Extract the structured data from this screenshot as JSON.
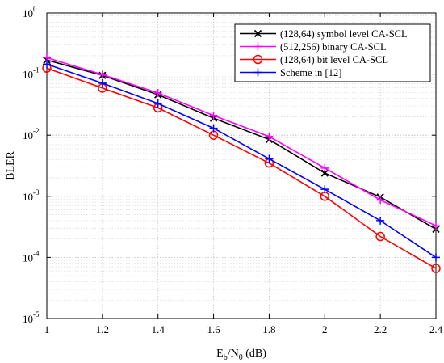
{
  "chart_data": {
    "type": "line",
    "x_scale": "linear",
    "y_scale": "log",
    "xlim": [
      1,
      2.4
    ],
    "ylim": [
      1e-05,
      1
    ],
    "x_ticks": [
      1,
      1.2,
      1.4,
      1.6,
      1.8,
      2,
      2.2,
      2.4
    ],
    "x_tick_labels": [
      "1",
      "1.2",
      "1.4",
      "1.6",
      "1.8",
      "2",
      "2.2",
      "2.4"
    ],
    "y_ticks": [
      1e-05,
      0.0001,
      0.001,
      0.01,
      0.1,
      1
    ],
    "y_tick_labels": [
      {
        "base": "10",
        "exp": "-5"
      },
      {
        "base": "10",
        "exp": "-4"
      },
      {
        "base": "10",
        "exp": "-3"
      },
      {
        "base": "10",
        "exp": "-2"
      },
      {
        "base": "10",
        "exp": "-1"
      },
      {
        "base": "10",
        "exp": "0"
      }
    ],
    "xlabel": {
      "main": "E",
      "sub1": "b",
      "mid": "/N",
      "sub2": "0",
      "tail": " (dB)"
    },
    "ylabel": "BLER",
    "grid": true,
    "legend_position": "top-right",
    "x": [
      1,
      1.2,
      1.4,
      1.6,
      1.8,
      2,
      2.2,
      2.4
    ],
    "series": [
      {
        "name": "(128,64) symbol level CA-SCL",
        "color": "#000000",
        "marker": "x",
        "values": [
          0.17,
          0.095,
          0.046,
          0.019,
          0.0085,
          0.0024,
          0.00097,
          0.00029
        ]
      },
      {
        "name": "(512,256) binary CA-SCL",
        "color": "#ff00ff",
        "marker": "plus",
        "values": [
          0.185,
          0.098,
          0.049,
          0.021,
          0.0095,
          0.0029,
          0.00087,
          0.00033
        ]
      },
      {
        "name": "(128,64) bit level CA-SCL",
        "color": "#ff0000",
        "marker": "circle",
        "values": [
          0.125,
          0.059,
          0.028,
          0.01,
          0.0035,
          0.001,
          0.00022,
          6.6e-05
        ]
      },
      {
        "name": "Scheme in [12]",
        "color": "#0000ff",
        "marker": "plus",
        "values": [
          0.145,
          0.071,
          0.033,
          0.013,
          0.0041,
          0.0013,
          0.0004,
          0.0001
        ]
      }
    ]
  }
}
